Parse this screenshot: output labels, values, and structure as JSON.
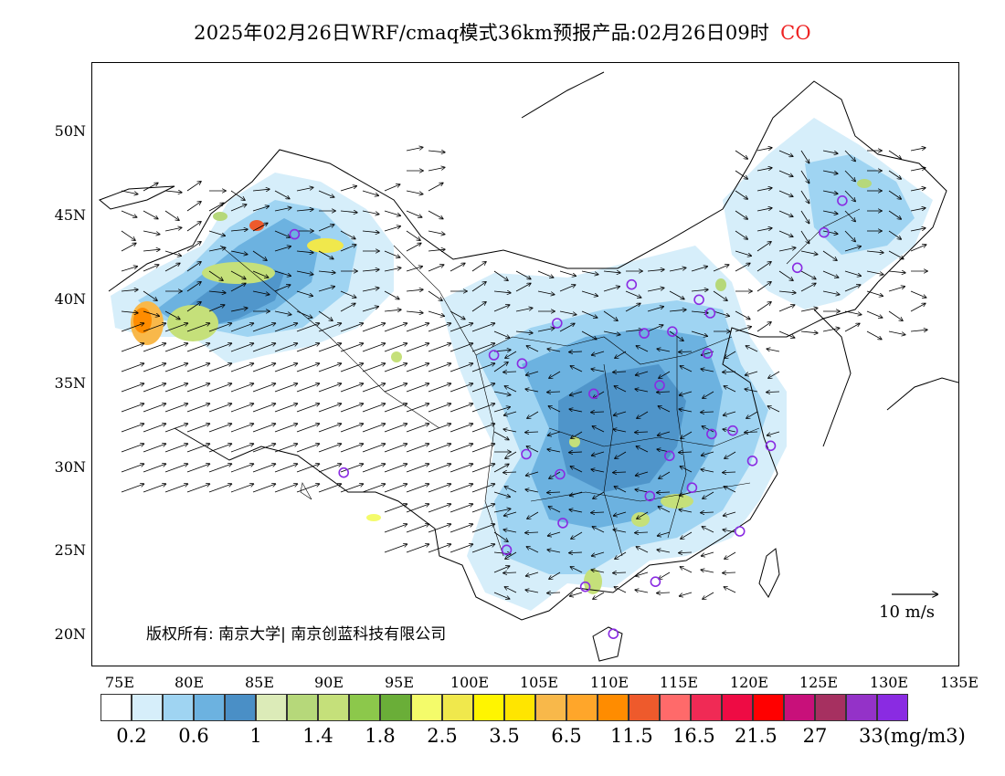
{
  "title": {
    "main": "2025年02月26日WRF/cmaq模式36km预报产品:02月26日09时",
    "species": "CO"
  },
  "axes": {
    "lat_labels": [
      "50N",
      "45N",
      "40N",
      "35N",
      "30N",
      "25N",
      "20N"
    ],
    "lon_labels": [
      "75E",
      "80E",
      "85E",
      "90E",
      "95E",
      "100E",
      "105E",
      "110E",
      "115E",
      "120E",
      "125E",
      "130E",
      "135E"
    ]
  },
  "legend": {
    "colors": [
      "#ffffff",
      "#d6eefa",
      "#9fd4f2",
      "#6cb2e0",
      "#4a8fc6",
      "#dcebb8",
      "#b6d87a",
      "#c5e07a",
      "#8cc84b",
      "#6aae38",
      "#f4fb6a",
      "#f0e84c",
      "#fff500",
      "#ffe500",
      "#f8b84a",
      "#ffa62a",
      "#ff8c00",
      "#ee5a2c",
      "#ff6a6a",
      "#f02a55",
      "#ee0b44",
      "#ff0000",
      "#c8107a",
      "#a63060",
      "#9432c8",
      "#8a2be2"
    ],
    "labels": [
      "0.2",
      "0.6",
      "1",
      "1.4",
      "1.8",
      "2.5",
      "3.5",
      "6.5",
      "11.5",
      "16.5",
      "21.5",
      "27",
      "33(mg/m3)"
    ]
  },
  "copyright": "版权所有: 南京大学| 南京创蓝科技有限公司",
  "wind_scale": "10 m/s",
  "map_data": {
    "extent": {
      "lon": [
        73,
        135
      ],
      "lat": [
        18,
        54
      ]
    },
    "stations": [
      [
        87.6,
        43.8
      ],
      [
        91.1,
        29.6
      ],
      [
        101.8,
        36.6
      ],
      [
        103.8,
        36.1
      ],
      [
        106.3,
        38.5
      ],
      [
        111.6,
        40.8
      ],
      [
        112.5,
        37.9
      ],
      [
        114.5,
        38.0
      ],
      [
        116.4,
        39.9
      ],
      [
        117.2,
        39.1
      ],
      [
        117.0,
        36.7
      ],
      [
        113.6,
        34.8
      ],
      [
        108.9,
        34.3
      ],
      [
        104.1,
        30.7
      ],
      [
        106.5,
        29.5
      ],
      [
        106.7,
        26.6
      ],
      [
        102.7,
        25.0
      ],
      [
        108.3,
        22.8
      ],
      [
        113.3,
        23.1
      ],
      [
        110.3,
        20.0
      ],
      [
        112.9,
        28.2
      ],
      [
        115.9,
        28.7
      ],
      [
        114.3,
        30.6
      ],
      [
        117.3,
        31.9
      ],
      [
        118.8,
        32.1
      ],
      [
        120.2,
        30.3
      ],
      [
        121.5,
        31.2
      ],
      [
        119.3,
        26.1
      ],
      [
        126.6,
        45.8
      ],
      [
        125.3,
        43.9
      ],
      [
        123.4,
        41.8
      ]
    ]
  }
}
